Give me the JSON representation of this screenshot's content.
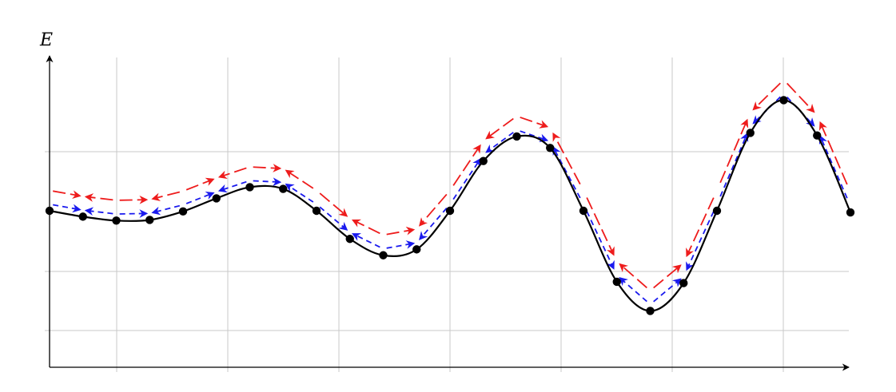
{
  "axis": {
    "y_label": "E"
  },
  "colors": {
    "curve": "#000000",
    "grid": "#c8c8c8",
    "red_path": "#ee1c1c",
    "blue_path": "#1a1aee",
    "points": "#000000"
  },
  "grid": {
    "x_ticks": 7,
    "y_ticks": 3
  },
  "curve": {
    "x": [
      0,
      0.5,
      1,
      1.5,
      2,
      2.5,
      3,
      3.5,
      4,
      4.5,
      5,
      5.5,
      6,
      6.5,
      7,
      7.5,
      8,
      8.5,
      9,
      9.5,
      10,
      10.5,
      11,
      11.5,
      12
    ],
    "y": [
      0,
      -0.18,
      -0.3,
      -0.28,
      -0.02,
      0.38,
      0.72,
      0.67,
      0.0,
      -0.86,
      -1.36,
      -1.18,
      0.0,
      1.52,
      2.27,
      1.92,
      0.0,
      -2.17,
      -3.06,
      -2.21,
      0.0,
      2.38,
      3.38,
      2.3,
      -0.05
    ]
  },
  "points": {
    "x": [
      0,
      0.5,
      1,
      1.5,
      2,
      2.5,
      3,
      3.5,
      4,
      4.5,
      5,
      5.5,
      6,
      6.5,
      7,
      7.5,
      8,
      8.5,
      9,
      9.5,
      10,
      10.5,
      11,
      11.5,
      12
    ],
    "y": [
      0,
      -0.18,
      -0.3,
      -0.28,
      -0.02,
      0.38,
      0.72,
      0.67,
      0.0,
      -0.86,
      -1.36,
      -1.18,
      0.0,
      1.52,
      2.27,
      1.92,
      0.0,
      -2.17,
      -3.06,
      -2.21,
      0.0,
      2.38,
      3.38,
      2.3,
      -0.05
    ]
  },
  "paths": {
    "red_offset": 0.62,
    "blue_offset": 0.2
  }
}
